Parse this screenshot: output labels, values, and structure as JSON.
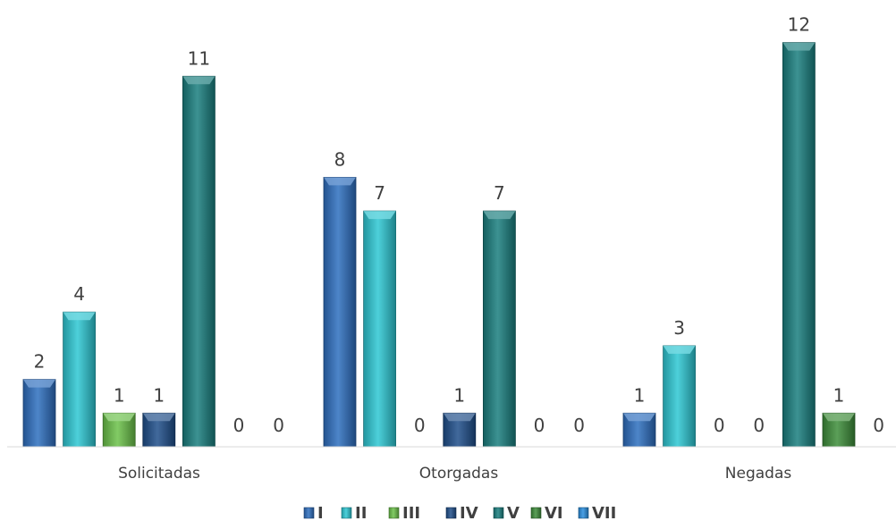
{
  "chart_data": {
    "type": "bar",
    "categories": [
      "Solicitadas",
      "Otorgadas",
      "Negadas"
    ],
    "series": [
      {
        "name": "I",
        "color": "#2e6fc0",
        "values": [
          2,
          8,
          1
        ]
      },
      {
        "name": "II",
        "color": "#2ec8d4",
        "values": [
          4,
          7,
          3
        ]
      },
      {
        "name": "III",
        "color": "#6cc24a",
        "values": [
          1,
          0,
          0
        ]
      },
      {
        "name": "IV",
        "color": "#1f4e8a",
        "values": [
          1,
          1,
          0
        ]
      },
      {
        "name": "V",
        "color": "#1a7f7f",
        "values": [
          11,
          7,
          12
        ]
      },
      {
        "name": "VI",
        "color": "#3e8e3a",
        "values": [
          0,
          0,
          1
        ]
      },
      {
        "name": "VII",
        "color": "#2a8fe0",
        "values": [
          0,
          0,
          0
        ]
      }
    ],
    "ylim": [
      0,
      12
    ],
    "legend_position": "bottom",
    "grid": false,
    "data_labels": true
  }
}
